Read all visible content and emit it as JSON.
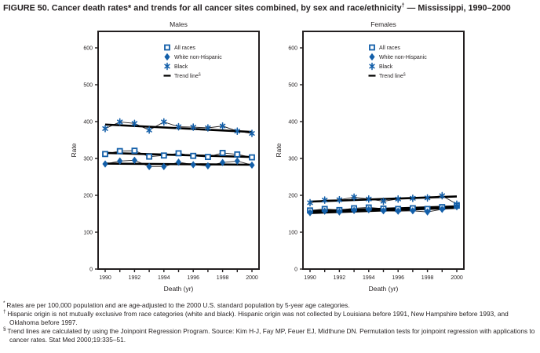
{
  "figure_title": {
    "prefix": "FIGURE 50. Cancer death rates* and trends for all cancer sites combined, by sex and race/ethnicity",
    "sup": "†",
    "suffix": " — Mississippi, 1990–2000"
  },
  "colors": {
    "marker_blue": "#135fa9",
    "axis_black": "#231f20"
  },
  "chart_data": [
    {
      "type": "scatter",
      "title": "Males",
      "xlabel": "Death (yr)",
      "ylabel": "Rate",
      "ylim": [
        0,
        645
      ],
      "yticks": [
        0,
        100,
        200,
        300,
        400,
        500,
        600
      ],
      "x": [
        1990,
        1991,
        1992,
        1993,
        1994,
        1995,
        1996,
        1997,
        1998,
        1999,
        2000
      ],
      "xticks_labeled": [
        1990,
        1992,
        1994,
        1996,
        1998,
        2000
      ],
      "series": [
        {
          "name": "All races",
          "marker": "square",
          "values": [
            312,
            320,
            321,
            305,
            308,
            314,
            307,
            304,
            315,
            311,
            303
          ]
        },
        {
          "name": "White non-Hispanic",
          "marker": "diamond",
          "values": [
            285,
            293,
            295,
            278,
            278,
            290,
            283,
            280,
            289,
            293,
            282
          ]
        },
        {
          "name": "Black",
          "marker": "asterisk",
          "values": [
            381,
            399,
            395,
            377,
            399,
            386,
            385,
            383,
            388,
            374,
            368
          ]
        }
      ],
      "trend_lines": [
        {
          "series": "All races",
          "start": 315,
          "end": 304
        },
        {
          "series": "White non-Hispanic",
          "start": 286,
          "end": 283
        },
        {
          "series": "Black",
          "start": 392,
          "end": 372
        }
      ],
      "legend": [
        {
          "label": "All races",
          "marker": "square"
        },
        {
          "label": "White non-Hispanic",
          "marker": "diamond"
        },
        {
          "label": "Black",
          "marker": "asterisk"
        },
        {
          "label": "Trend line",
          "sup": "§",
          "marker": "line"
        }
      ],
      "legend_position": "upper-middle"
    },
    {
      "type": "scatter",
      "title": "Females",
      "xlabel": "Death (yr)",
      "ylabel": "Rate",
      "ylim": [
        0,
        645
      ],
      "yticks": [
        0,
        100,
        200,
        300,
        400,
        500,
        600
      ],
      "x": [
        1990,
        1991,
        1992,
        1993,
        1994,
        1995,
        1996,
        1997,
        1998,
        1999,
        2000
      ],
      "xticks_labeled": [
        1990,
        1992,
        1994,
        1996,
        1998,
        2000
      ],
      "series": [
        {
          "name": "All races",
          "marker": "square",
          "values": [
            159,
            163,
            160,
            165,
            167,
            164,
            163,
            165,
            163,
            168,
            172
          ]
        },
        {
          "name": "White non-Hispanic",
          "marker": "diamond",
          "values": [
            153,
            157,
            155,
            159,
            161,
            158,
            157,
            158,
            155,
            162,
            169
          ]
        },
        {
          "name": "Black",
          "marker": "asterisk",
          "values": [
            180,
            187,
            188,
            195,
            190,
            184,
            190,
            192,
            193,
            199,
            176
          ]
        }
      ],
      "trend_lines": [
        {
          "series": "All races",
          "start": 157,
          "end": 170
        },
        {
          "series": "White non-Hispanic",
          "start": 152,
          "end": 166
        },
        {
          "series": "Black",
          "start": 183,
          "end": 197
        }
      ],
      "legend": [
        {
          "label": "All races",
          "marker": "square"
        },
        {
          "label": "White non-Hispanic",
          "marker": "diamond"
        },
        {
          "label": "Black",
          "marker": "asterisk"
        },
        {
          "label": "Trend line",
          "sup": "§",
          "marker": "line"
        }
      ],
      "legend_position": "upper-middle"
    }
  ],
  "footnotes": [
    {
      "marker": "*",
      "text": "Rates are per 100,000 population and are age-adjusted to the 2000 U.S. standard population by 5-year age categories."
    },
    {
      "marker": "†",
      "text": "Hispanic origin is not mutually exclusive from race categories (white and black). Hispanic origin was not collected by Louisiana before 1991, New Hampshire before 1993, and Oklahoma before 1997."
    },
    {
      "marker": "§",
      "text": "Trend lines are calculated by using the Joinpoint Regression Program. Source: Kim H-J, Fay MP, Feuer EJ, Midthune DN. Permutation tests for joinpoint regression with applications to cancer rates. Stat Med 2000;19:335–51."
    }
  ]
}
